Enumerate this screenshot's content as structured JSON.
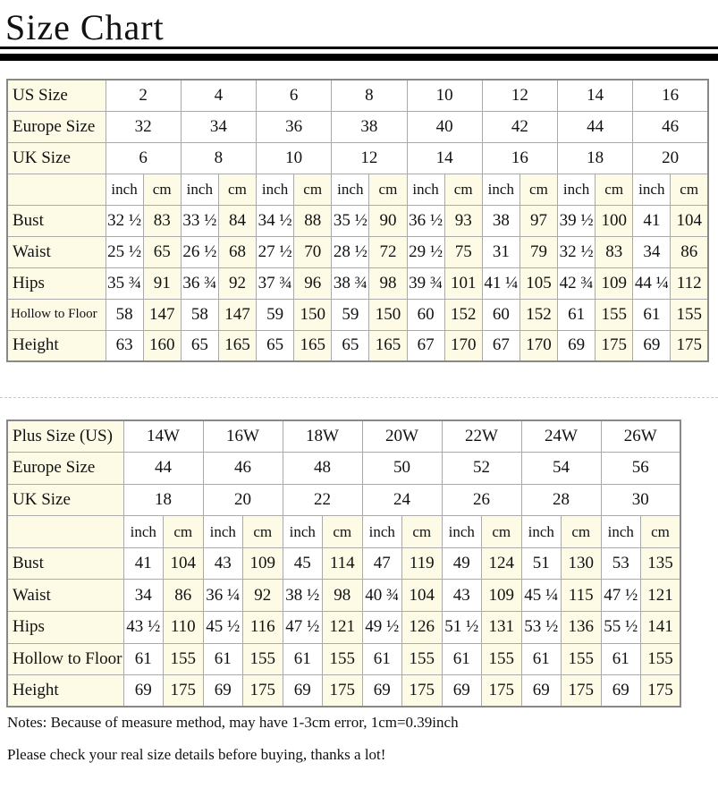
{
  "title": "Size Chart",
  "table1": {
    "row_labels": {
      "us": "US Size",
      "eu": "Europe Size",
      "uk": "UK Size",
      "bust": "Bust",
      "waist": "Waist",
      "hips": "Hips",
      "hollow": "Hollow to Floor",
      "height": "Height"
    },
    "unit_inch": "inch",
    "unit_cm": "cm",
    "us": [
      "2",
      "4",
      "6",
      "8",
      "10",
      "12",
      "14",
      "16"
    ],
    "eu": [
      "32",
      "34",
      "36",
      "38",
      "40",
      "42",
      "44",
      "46"
    ],
    "uk": [
      "6",
      "8",
      "10",
      "12",
      "14",
      "16",
      "18",
      "20"
    ],
    "bust": [
      "32 ½",
      "83",
      "33 ½",
      "84",
      "34 ½",
      "88",
      "35 ½",
      "90",
      "36 ½",
      "93",
      "38",
      "97",
      "39 ½",
      "100",
      "41",
      "104"
    ],
    "waist": [
      "25 ½",
      "65",
      "26 ½",
      "68",
      "27 ½",
      "70",
      "28 ½",
      "72",
      "29 ½",
      "75",
      "31",
      "79",
      "32 ½",
      "83",
      "34",
      "86"
    ],
    "hips": [
      "35 ¾",
      "91",
      "36 ¾",
      "92",
      "37 ¾",
      "96",
      "38 ¾",
      "98",
      "39 ¾",
      "101",
      "41 ¼",
      "105",
      "42 ¾",
      "109",
      "44 ¼",
      "112"
    ],
    "hollow": [
      "58",
      "147",
      "58",
      "147",
      "59",
      "150",
      "59",
      "150",
      "60",
      "152",
      "60",
      "152",
      "61",
      "155",
      "61",
      "155"
    ],
    "height": [
      "63",
      "160",
      "65",
      "165",
      "65",
      "165",
      "65",
      "165",
      "67",
      "170",
      "67",
      "170",
      "69",
      "175",
      "69",
      "175"
    ]
  },
  "table2": {
    "row_labels": {
      "us": "Plus Size (US)",
      "eu": "Europe Size",
      "uk": "UK Size",
      "bust": "Bust",
      "waist": "Waist",
      "hips": "Hips",
      "hollow": "Hollow to Floor",
      "height": "Height"
    },
    "unit_inch": "inch",
    "unit_cm": "cm",
    "us": [
      "14W",
      "16W",
      "18W",
      "20W",
      "22W",
      "24W",
      "26W"
    ],
    "eu": [
      "44",
      "46",
      "48",
      "50",
      "52",
      "54",
      "56"
    ],
    "uk": [
      "18",
      "20",
      "22",
      "24",
      "26",
      "28",
      "30"
    ],
    "bust": [
      "41",
      "104",
      "43",
      "109",
      "45",
      "114",
      "47",
      "119",
      "49",
      "124",
      "51",
      "130",
      "53",
      "135"
    ],
    "waist": [
      "34",
      "86",
      "36 ¼",
      "92",
      "38 ½",
      "98",
      "40 ¾",
      "104",
      "43",
      "109",
      "45 ¼",
      "115",
      "47 ½",
      "121"
    ],
    "hips": [
      "43 ½",
      "110",
      "45 ½",
      "116",
      "47 ½",
      "121",
      "49 ½",
      "126",
      "51 ½",
      "131",
      "53 ½",
      "136",
      "55 ½",
      "141"
    ],
    "hollow": [
      "61",
      "155",
      "61",
      "155",
      "61",
      "155",
      "61",
      "155",
      "61",
      "155",
      "61",
      "155",
      "61",
      "155"
    ],
    "height": [
      "69",
      "175",
      "69",
      "175",
      "69",
      "175",
      "69",
      "175",
      "69",
      "175",
      "69",
      "175",
      "69",
      "175"
    ]
  },
  "notes": [
    "Notes: Because of measure method, may have 1-3cm error, 1cm=0.39inch",
    "Please check your real size details before buying, thanks a lot!"
  ]
}
